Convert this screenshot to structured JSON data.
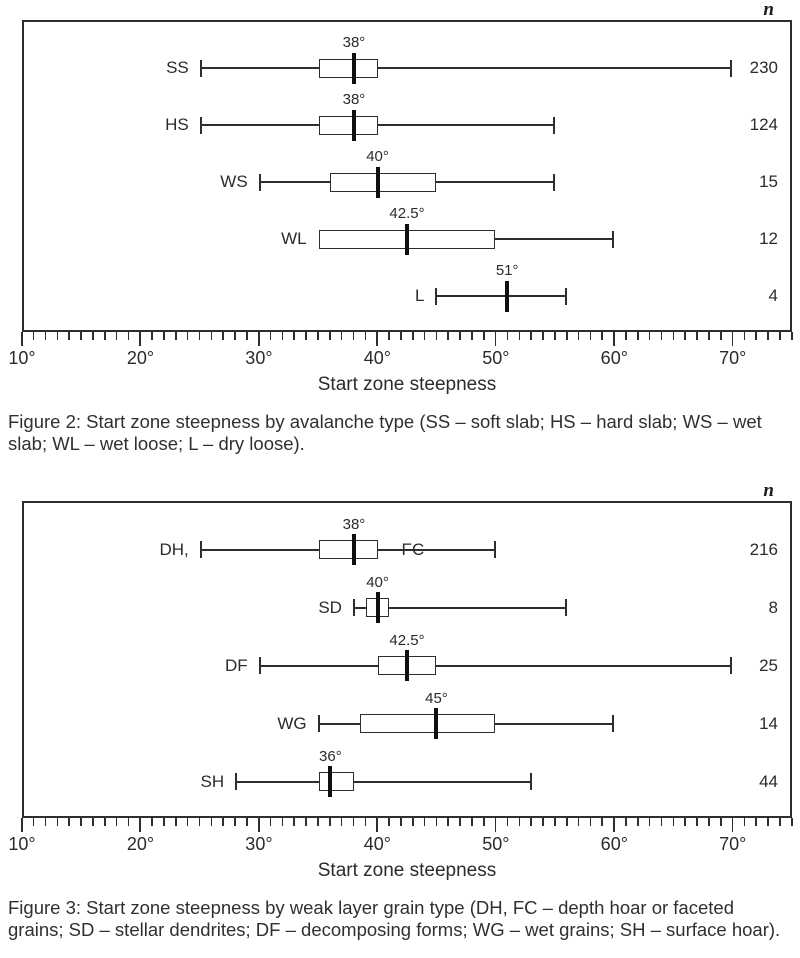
{
  "page": {
    "background": "#ffffff"
  },
  "colors": {
    "frame": "#2e2e2e",
    "line": "#2e2e2e",
    "median": "#0f0f0f",
    "text": "#2b2b2b"
  },
  "chart_data": [
    {
      "type": "boxplot",
      "orientation": "horizontal",
      "n_column_header": "n",
      "xlabel": "Start zone steepness",
      "caption": "Figure 2: Start zone steepness by avalanche type (SS – soft slab; HS – hard slab; WS – wet slab; WL – wet loose; L – dry loose).",
      "x_range": [
        10,
        75
      ],
      "x_major_ticks": [
        10,
        20,
        30,
        40,
        50,
        60,
        70
      ],
      "x_tick_labels": [
        "10°",
        "20°",
        "30°",
        "40°",
        "50°",
        "60°",
        "70°"
      ],
      "x_minor_step": 1,
      "grid": false,
      "categories": [
        "SS",
        "HS",
        "WS",
        "WL",
        "L"
      ],
      "series": [
        {
          "category": "SS",
          "min": 25,
          "q1": 35,
          "median": 38,
          "q3": 40,
          "max": 70,
          "n": 230,
          "median_label": "38°"
        },
        {
          "category": "HS",
          "min": 25,
          "q1": 35,
          "median": 38,
          "q3": 40,
          "max": 55,
          "n": 124,
          "median_label": "38°"
        },
        {
          "category": "WS",
          "min": 30,
          "q1": 36,
          "median": 40,
          "q3": 45,
          "max": 55,
          "n": 15,
          "median_label": "40°"
        },
        {
          "category": "WL",
          "min": 35,
          "q1": 35,
          "median": 42.5,
          "q3": 50,
          "max": 60,
          "n": 12,
          "median_label": "42.5°"
        },
        {
          "category": "L",
          "min": 45,
          "q1": null,
          "median": 51,
          "q3": null,
          "max": 56,
          "n": 4,
          "median_label": "51°"
        }
      ]
    },
    {
      "type": "boxplot",
      "orientation": "horizontal",
      "n_column_header": "n",
      "xlabel": "Start zone steepness",
      "caption": "Figure 3: Start zone steepness by weak layer grain type (DH, FC – depth hoar or faceted grains; SD – stellar dendrites; DF – decomposing forms; WG – wet grains; SH – surface hoar).",
      "x_range": [
        10,
        75
      ],
      "x_major_ticks": [
        10,
        20,
        30,
        40,
        50,
        60,
        70
      ],
      "x_tick_labels": [
        "10°",
        "20°",
        "30°",
        "40°",
        "50°",
        "60°",
        "70°"
      ],
      "x_minor_step": 1,
      "grid": false,
      "categories": [
        "DH, FC",
        "SD",
        "DF",
        "WG",
        "SH"
      ],
      "series": [
        {
          "category": "DH,",
          "overlay_label": "FC",
          "overlay_x": 43,
          "min": 25,
          "q1": 35,
          "median": 38,
          "q3": 40,
          "max": 50,
          "n": 216,
          "median_label": "38°"
        },
        {
          "category": "SD",
          "min": 38,
          "q1": 39,
          "median": 40,
          "q3": 41,
          "max": 56,
          "n": 8,
          "median_label": "40°"
        },
        {
          "category": "DF",
          "min": 30,
          "q1": 40,
          "median": 42.5,
          "q3": 45,
          "max": 70,
          "n": 25,
          "median_label": "42.5°"
        },
        {
          "category": "WG",
          "min": 35,
          "q1": 38.5,
          "median": 45,
          "q3": 50,
          "max": 60,
          "n": 14,
          "median_label": "45°"
        },
        {
          "category": "SH",
          "min": 28,
          "q1": 35,
          "median": 36,
          "q3": 38,
          "max": 53,
          "n": 44,
          "median_label": "36°"
        }
      ]
    }
  ]
}
